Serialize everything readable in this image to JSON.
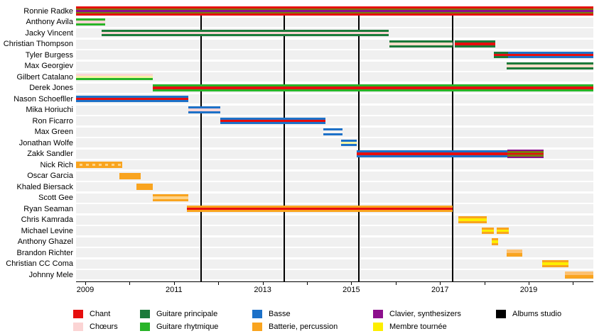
{
  "chart_data": {
    "type": "gantt-timeline",
    "title": "",
    "x_axis": {
      "start": 2008.792,
      "end": 2020.458,
      "tick_years": [
        2009,
        2010,
        2011,
        2012,
        2013,
        2014,
        2015,
        2016,
        2017,
        2018,
        2019,
        2020
      ],
      "label_years": [
        2009,
        2011,
        2013,
        2015,
        2017,
        2019
      ]
    },
    "palette": {
      "chant": "#e60e0e",
      "choeurs": "#fbd4d4",
      "principale": "#1b7a3a",
      "rythmique": "#28b428",
      "basse": "#1d71c8",
      "batterie": "#f9a41f",
      "clavier": "#8d0f8d",
      "tournee": "#fdee00",
      "albums": "#000000",
      "olive": "#7c7c10",
      "pale_pink": "#f7dcc8",
      "pale_yellow": "#f6f3a4",
      "pale_white": "#f2f2f2",
      "pale_orange": "#fdd389",
      "light_orange": "#fcc171"
    },
    "album_release_lines": [
      2011.613,
      2013.487,
      2015.17,
      2017.285
    ],
    "members": [
      {
        "name": "Ronnie Radke",
        "segments": [
          {
            "start": 2008.792,
            "end": 2020.458,
            "stripes": [
              "chant",
              "olive",
              "clavier",
              "olive",
              "chant"
            ]
          }
        ]
      },
      {
        "name": "Anthony Avila",
        "segments": [
          {
            "start": 2008.792,
            "end": 2009.449,
            "stripes": [
              "rythmique",
              "choeurs",
              "rythmique"
            ]
          }
        ]
      },
      {
        "name": "Jacky Vincent",
        "segments": [
          {
            "start": 2009.369,
            "end": 2015.843,
            "stripes": [
              "principale",
              "choeurs",
              "principale"
            ]
          }
        ]
      },
      {
        "name": "Christian Thompson",
        "segments": [
          {
            "start": 2015.859,
            "end": 2017.285,
            "stripes": [
              "principale",
              "pale_pink",
              "principale"
            ]
          },
          {
            "start": 2017.333,
            "end": 2018.247,
            "stripes": [
              "principale",
              "chant",
              "principale"
            ]
          }
        ]
      },
      {
        "name": "Tyler Burgess",
        "segments": [
          {
            "start": 2018.215,
            "end": 2018.535,
            "stripes": [
              "principale",
              "chant",
              "principale"
            ]
          },
          {
            "start": 2018.535,
            "end": 2020.458,
            "stripes": [
              "basse",
              "chant",
              "basse"
            ]
          }
        ]
      },
      {
        "name": "Max Georgiev",
        "segments": [
          {
            "start": 2018.503,
            "end": 2020.458,
            "stripes": [
              "principale",
              "pale_pink",
              "principale"
            ]
          }
        ]
      },
      {
        "name": "Gilbert Catalano",
        "segments": [
          {
            "start": 2008.792,
            "end": 2010.522,
            "stripes": [
              "choeurs",
              "pale_yellow",
              "rythmique"
            ]
          }
        ]
      },
      {
        "name": "Derek Jones",
        "segments": [
          {
            "start": 2010.522,
            "end": 2020.458,
            "stripes": [
              "rythmique",
              "chant",
              "rythmique"
            ]
          }
        ]
      },
      {
        "name": "Nason Schoefller",
        "segments": [
          {
            "start": 2008.792,
            "end": 2011.324,
            "stripes": [
              "basse",
              "chant",
              "basse"
            ]
          }
        ]
      },
      {
        "name": "Mika Horiuchi",
        "segments": [
          {
            "start": 2011.324,
            "end": 2012.045,
            "stripes": [
              "basse",
              "choeurs",
              "basse"
            ]
          }
        ]
      },
      {
        "name": "Ron Ficarro",
        "segments": [
          {
            "start": 2012.045,
            "end": 2014.417,
            "stripes": [
              "basse",
              "chant",
              "basse"
            ]
          }
        ]
      },
      {
        "name": "Max Green",
        "segments": [
          {
            "start": 2014.369,
            "end": 2014.801,
            "stripes": [
              "basse",
              "pale_white",
              "basse"
            ]
          }
        ]
      },
      {
        "name": "Jonathan Wolfe",
        "segments": [
          {
            "start": 2014.769,
            "end": 2015.122,
            "stripes": [
              "basse",
              "pale_yellow",
              "basse"
            ]
          }
        ]
      },
      {
        "name": "Zakk Sandler",
        "segments": [
          {
            "start": 2015.122,
            "end": 2018.519,
            "stripes": [
              "basse",
              "chant",
              "basse"
            ]
          },
          {
            "start": 2018.519,
            "end": 2019.337,
            "stripes": [
              "clavier",
              "olive",
              "chant",
              "olive",
              "clavier"
            ]
          }
        ]
      },
      {
        "name": "Nick Rich",
        "segments": [
          {
            "start": 2008.792,
            "end": 2009.833,
            "stripes": [
              "batterie",
              "CANDY",
              "batterie"
            ]
          }
        ]
      },
      {
        "name": "Oscar Garcia",
        "segments": [
          {
            "start": 2009.769,
            "end": 2010.25,
            "stripes": [
              "batterie"
            ]
          }
        ]
      },
      {
        "name": "Khaled Biersack",
        "segments": [
          {
            "start": 2010.154,
            "end": 2010.522,
            "stripes": [
              "batterie"
            ]
          }
        ]
      },
      {
        "name": "Scott Gee",
        "segments": [
          {
            "start": 2010.522,
            "end": 2011.324,
            "stripes": [
              "batterie",
              "pale_orange",
              "batterie"
            ]
          }
        ]
      },
      {
        "name": "Ryan Seaman",
        "segments": [
          {
            "start": 2011.292,
            "end": 2017.285,
            "stripes": [
              "batterie",
              "chant",
              "batterie"
            ]
          }
        ]
      },
      {
        "name": "Chris Kamrada",
        "segments": [
          {
            "start": 2017.413,
            "end": 2018.054,
            "stripes": [
              "batterie",
              "tournee",
              "batterie"
            ]
          }
        ]
      },
      {
        "name": "Michael Levine",
        "segments": [
          {
            "start": 2017.942,
            "end": 2018.215,
            "stripes": [
              "batterie",
              "tournee",
              "batterie"
            ]
          },
          {
            "start": 2018.279,
            "end": 2018.551,
            "stripes": [
              "batterie",
              "tournee",
              "batterie"
            ]
          }
        ]
      },
      {
        "name": "Anthony Ghazel",
        "segments": [
          {
            "start": 2018.167,
            "end": 2018.311,
            "stripes": [
              "batterie",
              "tournee",
              "batterie"
            ]
          }
        ]
      },
      {
        "name": "Brandon Richter",
        "segments": [
          {
            "start": 2018.503,
            "end": 2018.856,
            "stripes": [
              "light_orange",
              "batterie"
            ]
          }
        ]
      },
      {
        "name": "Christian CC Coma",
        "segments": [
          {
            "start": 2019.304,
            "end": 2019.897,
            "stripes": [
              "batterie",
              "tournee",
              "batterie"
            ]
          }
        ]
      },
      {
        "name": "Johnny Mele",
        "segments": [
          {
            "start": 2019.817,
            "end": 2020.458,
            "stripes": [
              "light_orange",
              "batterie"
            ]
          }
        ]
      }
    ],
    "legend": [
      {
        "label": "Chant",
        "color_key": "chant",
        "col": 0,
        "row": 0
      },
      {
        "label": "Chœurs",
        "color_key": "choeurs",
        "col": 0,
        "row": 1
      },
      {
        "label": "Guitare principale",
        "color_key": "principale",
        "col": 1,
        "row": 0
      },
      {
        "label": "Guitare rhytmique",
        "color_key": "rythmique",
        "col": 1,
        "row": 1
      },
      {
        "label": "Basse",
        "color_key": "basse",
        "col": 2,
        "row": 0
      },
      {
        "label": "Batterie, percussion",
        "color_key": "batterie",
        "col": 2,
        "row": 1
      },
      {
        "label": "Clavier, synthesizers",
        "color_key": "clavier",
        "col": 3,
        "row": 0
      },
      {
        "label": "Membre tournée",
        "color_key": "tournee",
        "col": 3,
        "row": 1
      },
      {
        "label": "Albums studio",
        "color_key": "albums",
        "col": 4,
        "row": 0
      }
    ]
  }
}
